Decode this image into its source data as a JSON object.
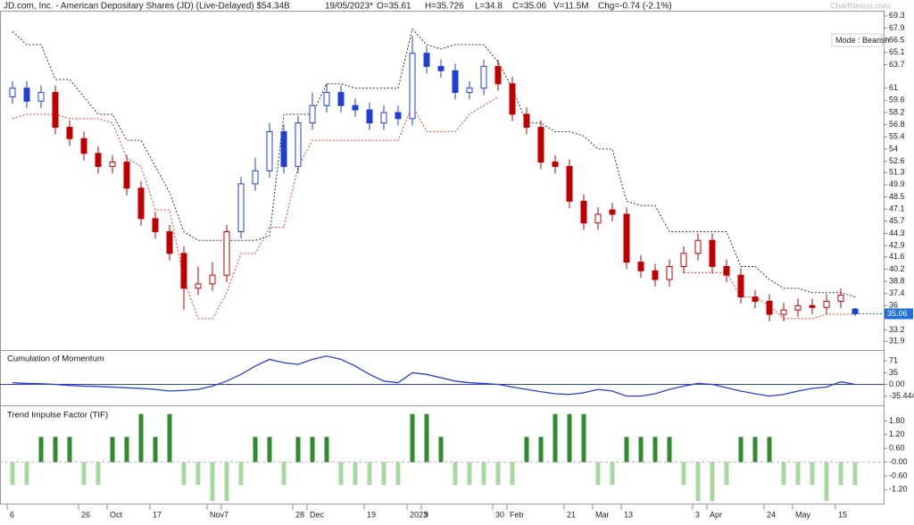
{
  "header": {
    "title": "JD.com, Inc. - American Depositary Shares (JD) (Live-Delayed) $54.34B",
    "date": "19/05/2023*",
    "fields": [
      "O=35.61",
      "H=35.726",
      "L=34.8",
      "C=35.06",
      "V=11.5M",
      "Chg=-0.74 (-2.1%)"
    ],
    "brand": "ChartNexus.com"
  },
  "chart_data": [
    {
      "type": "candlestick",
      "mode_label": "Mode : Bearish",
      "categories": [
        "6",
        null,
        null,
        null,
        null,
        "26",
        null,
        "Oct",
        null,
        null,
        "17",
        null,
        null,
        null,
        "Nov",
        "7",
        null,
        null,
        null,
        null,
        "28",
        "Dec",
        null,
        null,
        null,
        "19",
        null,
        null,
        "2023",
        "9",
        null,
        null,
        null,
        null,
        "30",
        "Feb",
        null,
        null,
        null,
        "21",
        null,
        "Mar",
        null,
        "13",
        null,
        null,
        null,
        null,
        "3",
        "Apr",
        null,
        null,
        null,
        "24",
        null,
        "May",
        null,
        null,
        "15",
        null
      ],
      "open": [
        60,
        61,
        59.5,
        60.5,
        56.5,
        55.2,
        53.5,
        52,
        52.5,
        49.5,
        46,
        44.5,
        42,
        38,
        38.5,
        39.5,
        44.5,
        50,
        51.5,
        56,
        52,
        57,
        59,
        60.5,
        59,
        58.5,
        57,
        58.2,
        57.5,
        65,
        63.5,
        63,
        60.5,
        61,
        63.5,
        61.5,
        58,
        56.5,
        52.5,
        52,
        48,
        45.5,
        47,
        46.5,
        41,
        40,
        39,
        40.5,
        42,
        43.5,
        40.5,
        39.5,
        37,
        36.5,
        35,
        35.5,
        36,
        35.8,
        36.5,
        35.61
      ],
      "high": [
        61.8,
        61.8,
        61.3,
        61.3,
        57.3,
        56,
        54.3,
        53.3,
        53.3,
        50.3,
        46.8,
        45.3,
        42.8,
        40.5,
        41,
        45.3,
        50.8,
        53,
        57,
        56.8,
        57.8,
        60.5,
        61.5,
        61.3,
        59.8,
        59.3,
        59,
        59,
        67,
        65.8,
        64.3,
        63.8,
        61.8,
        64.3,
        64.3,
        62.3,
        58.8,
        57.3,
        53.3,
        52.8,
        48.8,
        47.3,
        47.8,
        47.3,
        41.8,
        40.8,
        41.3,
        42.8,
        44.3,
        44.3,
        41.3,
        40.3,
        37.8,
        37.3,
        36.3,
        36.8,
        36.8,
        37.3,
        38,
        35.726
      ],
      "low": [
        59.2,
        58.7,
        58.7,
        55.7,
        54.4,
        52.7,
        51.2,
        51.2,
        48.7,
        45.2,
        43.7,
        41.2,
        35.5,
        37.2,
        37.7,
        38.7,
        43.7,
        49.2,
        50.7,
        51.2,
        51.2,
        56.2,
        58.2,
        58.2,
        57.7,
        56.2,
        56.2,
        56.7,
        56.7,
        62.7,
        62.2,
        59.7,
        59.7,
        60.2,
        60.7,
        57.2,
        55.7,
        51.7,
        51.2,
        47.2,
        44.7,
        44.7,
        45.7,
        40.2,
        39.2,
        38.2,
        38.2,
        39.7,
        41.2,
        39.7,
        38.7,
        36.2,
        35.7,
        34.2,
        34.2,
        34.7,
        35,
        35,
        35.7,
        34.8
      ],
      "close": [
        61,
        59.5,
        60.5,
        56.5,
        55.2,
        53.5,
        52,
        52.5,
        49.5,
        46,
        44.5,
        42,
        38,
        38.5,
        39.5,
        44.5,
        50,
        51.5,
        56,
        52,
        57,
        59,
        60.5,
        59,
        58.5,
        57,
        58.2,
        57.5,
        65,
        63.5,
        63,
        60.5,
        61,
        63.5,
        61.5,
        58,
        56.5,
        52.5,
        52,
        48,
        45.5,
        46.5,
        46.5,
        41,
        40,
        39,
        40.5,
        42,
        43.5,
        40.5,
        39.5,
        37,
        36.5,
        35,
        35.5,
        36,
        35.8,
        36.5,
        37.2,
        35.06
      ],
      "colors": [
        "#1f3fd0",
        "#1f3fd0",
        "#1f3fd0",
        "#c00000",
        "#c00000",
        "#c00000",
        "#c00000",
        "#c00000",
        "#c00000",
        "#c00000",
        "#c00000",
        "#c00000",
        "#c00000",
        "#c00000",
        "#c00000",
        "#c00000",
        "#1f3fd0",
        "#1f3fd0",
        "#1f3fd0",
        "#1f3fd0",
        "#1f3fd0",
        "#1f3fd0",
        "#1f3fd0",
        "#1f3fd0",
        "#1f3fd0",
        "#1f3fd0",
        "#1f3fd0",
        "#1f3fd0",
        "#1f3fd0",
        "#1f3fd0",
        "#1f3fd0",
        "#1f3fd0",
        "#1f3fd0",
        "#1f3fd0",
        "#c00000",
        "#c00000",
        "#c00000",
        "#c00000",
        "#c00000",
        "#c00000",
        "#c00000",
        "#c00000",
        "#c00000",
        "#c00000",
        "#c00000",
        "#c00000",
        "#c00000",
        "#c00000",
        "#c00000",
        "#c00000",
        "#c00000",
        "#c00000",
        "#c00000",
        "#c00000",
        "#c00000",
        "#c00000",
        "#c00000",
        "#c00000",
        "#c00000",
        "#1f3fd0"
      ],
      "upper_stop": [
        67.5,
        66,
        66,
        62,
        62,
        60,
        58,
        58,
        55,
        55,
        52,
        49,
        44.5,
        43.5,
        43.5,
        43.5,
        43.5,
        43.5,
        44,
        58,
        58,
        58,
        61.5,
        61.5,
        61,
        61,
        61,
        61,
        67.8,
        66,
        65.5,
        66,
        66,
        66,
        64,
        61,
        57,
        57,
        56,
        56,
        55.5,
        54,
        54,
        48,
        47.5,
        47.5,
        44.5,
        44.5,
        44.5,
        44.5,
        44.5,
        40.5,
        40.5,
        39,
        38,
        38,
        37.5,
        37.5,
        37.5,
        37
      ],
      "upper_color": "#333333",
      "lower_stop": [
        57.5,
        58,
        58,
        58,
        57.5,
        57.5,
        57.5,
        57,
        53,
        52,
        47,
        47,
        39,
        34.5,
        34.5,
        37.5,
        42,
        42,
        45,
        45,
        52,
        55,
        55,
        55,
        55,
        55,
        55,
        55,
        59,
        56,
        56,
        56,
        58,
        59,
        60,
        null,
        null,
        null,
        null,
        null,
        null,
        null,
        null,
        null,
        null,
        null,
        null,
        39.8,
        39.8,
        39.8,
        39.8,
        37,
        37,
        36,
        34.5,
        34.5,
        34.5,
        35,
        35,
        35
      ],
      "lower_color": "#e0442c",
      "last_color": "#1f6fe0",
      "ylim": [
        30.9,
        69.9
      ],
      "yticks": [
        69.3,
        67.9,
        66.5,
        65.1,
        63.7,
        61,
        59.6,
        58.2,
        56.8,
        55.4,
        54,
        52.6,
        51.3,
        49.9,
        48.5,
        47.1,
        45.7,
        44.3,
        42.9,
        41.6,
        40.2,
        38.8,
        37.4,
        36,
        33.2,
        31.9
      ]
    },
    {
      "type": "line",
      "title": "Cumulation of Momentum",
      "color": "#2a3fd8",
      "values": [
        5,
        3,
        2,
        0,
        -3,
        -5,
        -6,
        -8,
        -10,
        -12,
        -15,
        -20,
        -18,
        -15,
        -5,
        10,
        30,
        55,
        75,
        65,
        60,
        75,
        85,
        75,
        55,
        30,
        10,
        5,
        35,
        30,
        20,
        10,
        5,
        3,
        0,
        -8,
        -15,
        -22,
        -28,
        -30,
        -25,
        -15,
        -20,
        -35,
        -35,
        -28,
        -15,
        -5,
        3,
        0,
        -10,
        -20,
        -28,
        -35,
        -30,
        -20,
        -12,
        -8,
        8,
        0
      ],
      "ylim": [
        -60,
        95
      ],
      "yticks": [
        71,
        35,
        {
          "value": 0,
          "label": "0.00"
        },
        -35.444
      ]
    },
    {
      "type": "bar",
      "title": "Trend Impulse Factor (TIF)",
      "pos_color": "#2e8b2e",
      "neg_color": "#a8d8a0",
      "values": [
        -1.0,
        -1.0,
        1.1,
        1.1,
        1.1,
        -1.0,
        -1.0,
        1.1,
        1.1,
        2.1,
        1.1,
        2.1,
        -1.0,
        -1.0,
        -1.7,
        -1.7,
        -1.0,
        1.1,
        1.1,
        -1.0,
        1.1,
        1.1,
        1.1,
        -1.0,
        -1.0,
        -1.0,
        -1.0,
        -1.0,
        2.1,
        2.1,
        1.1,
        -1.0,
        -1.0,
        -1.0,
        -1.0,
        -1.0,
        1.1,
        1.1,
        2.1,
        2.1,
        2.1,
        -1.0,
        -1.0,
        1.1,
        1.1,
        1.1,
        1.1,
        -1.0,
        -1.7,
        -1.7,
        -1.0,
        1.1,
        1.1,
        1.1,
        -1.0,
        -1.0,
        -1.0,
        -1.7,
        -1.0,
        -1.0
      ],
      "ylim": [
        -1.85,
        2.4
      ],
      "yticks": [
        {
          "value": 1.8,
          "label": "1.80"
        },
        {
          "value": 1.2,
          "label": "1.20"
        },
        {
          "value": 0.6,
          "label": "0.60"
        },
        {
          "value": 0,
          "label": "-0.00"
        },
        {
          "value": -0.6,
          "label": "-0.60"
        },
        {
          "value": -1.2,
          "label": "-1.20"
        }
      ]
    }
  ]
}
